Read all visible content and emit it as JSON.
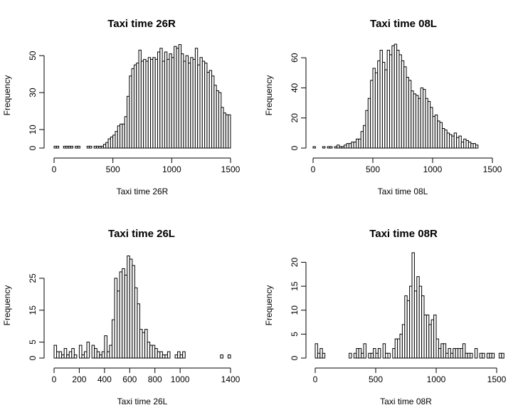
{
  "chart_data": [
    {
      "type": "bar",
      "title": "Taxi time 26R",
      "xlabel": "Taxi time 26R",
      "ylabel": "Frequency",
      "xlim": [
        0,
        1500
      ],
      "ylim": [
        0,
        57
      ],
      "bin_width": 20,
      "bin_start": 0,
      "xticks": [
        0,
        500,
        1000,
        1500
      ],
      "xtick_labels": [
        "0",
        "500",
        "1000",
        "1500"
      ],
      "yticks": [
        0,
        10,
        30,
        50
      ],
      "ytick_labels": [
        "0",
        "10",
        "30",
        "50"
      ],
      "values": [
        1,
        1,
        0,
        0,
        1,
        1,
        1,
        1,
        0,
        1,
        1,
        0,
        0,
        0,
        1,
        1,
        0,
        1,
        1,
        1,
        1,
        2,
        3,
        5,
        6,
        7,
        9,
        12,
        13,
        13,
        17,
        28,
        39,
        43,
        45,
        46,
        53,
        47,
        48,
        47,
        49,
        48,
        49,
        48,
        52,
        54,
        47,
        52,
        48,
        51,
        49,
        55,
        54,
        56,
        51,
        47,
        50,
        46,
        49,
        48,
        54,
        45,
        49,
        47,
        46,
        41,
        42,
        39,
        34,
        31,
        30,
        22,
        19,
        18,
        18
      ],
      "grid": false,
      "legend": "none"
    },
    {
      "type": "bar",
      "title": "Taxi time 08L",
      "xlabel": "Taxi time 08L",
      "ylabel": "Frequency",
      "xlim": [
        0,
        1500
      ],
      "ylim": [
        0,
        70
      ],
      "bin_width": 20,
      "bin_start": 0,
      "xticks": [
        0,
        500,
        1000,
        1500
      ],
      "xtick_labels": [
        "0",
        "500",
        "1000",
        "1500"
      ],
      "yticks": [
        0,
        20,
        40,
        60
      ],
      "ytick_labels": [
        "0",
        "20",
        "40",
        "60"
      ],
      "values": [
        1,
        0,
        0,
        0,
        1,
        0,
        1,
        1,
        0,
        1,
        2,
        1,
        1,
        2,
        3,
        3,
        4,
        4,
        6,
        6,
        11,
        15,
        25,
        33,
        45,
        53,
        50,
        58,
        65,
        57,
        52,
        65,
        62,
        68,
        69,
        65,
        62,
        58,
        54,
        47,
        45,
        38,
        36,
        35,
        33,
        40,
        39,
        33,
        31,
        27,
        21,
        22,
        18,
        17,
        13,
        12,
        10,
        9,
        8,
        10,
        7,
        8,
        4,
        6,
        5,
        4,
        3,
        3,
        2
      ],
      "grid": false,
      "legend": "none"
    },
    {
      "type": "bar",
      "title": "Taxi time 26L",
      "xlabel": "Taxi time 26L",
      "ylabel": "Frequency",
      "xlim": [
        0,
        1400
      ],
      "ylim": [
        0,
        33
      ],
      "bin_width": 20,
      "bin_start": 0,
      "xticks": [
        0,
        200,
        400,
        600,
        800,
        1000,
        1400
      ],
      "xtick_labels": [
        "0",
        "200",
        "400",
        "600",
        "800",
        "1000",
        "1400"
      ],
      "yticks": [
        0,
        5,
        15,
        25
      ],
      "ytick_labels": [
        "0",
        "5",
        "15",
        "25"
      ],
      "values": [
        4,
        2,
        2,
        1,
        3,
        1,
        2,
        3,
        1,
        0,
        4,
        1,
        2,
        5,
        0,
        4,
        3,
        2,
        1,
        2,
        7,
        2,
        4,
        12,
        25,
        21,
        27,
        28,
        26,
        32,
        31,
        29,
        22,
        17,
        9,
        8,
        9,
        5,
        4,
        4,
        3,
        2,
        2,
        1,
        1,
        2,
        0,
        0,
        1,
        2,
        1,
        2,
        0,
        0,
        0,
        0,
        0,
        0,
        0,
        0,
        0,
        0,
        0,
        0,
        0,
        0,
        1,
        0,
        0,
        1
      ],
      "grid": false,
      "legend": "none"
    },
    {
      "type": "bar",
      "title": "Taxi time 08R",
      "xlabel": "Taxi time 08R",
      "ylabel": "Frequency",
      "xlim": [
        0,
        1500
      ],
      "ylim": [
        0,
        22
      ],
      "bin_width": 20,
      "bin_start": 0,
      "xticks": [
        0,
        500,
        1000,
        1500
      ],
      "xtick_labels": [
        "0",
        "500",
        "1000",
        "1500"
      ],
      "yticks": [
        0,
        5,
        10,
        15,
        20
      ],
      "ytick_labels": [
        "0",
        "5",
        "10",
        "15",
        "20"
      ],
      "values": [
        3,
        1,
        2,
        1,
        0,
        0,
        0,
        0,
        0,
        0,
        0,
        0,
        0,
        0,
        1,
        0,
        1,
        2,
        2,
        1,
        3,
        0,
        1,
        1,
        2,
        1,
        2,
        0,
        3,
        1,
        1,
        0,
        2,
        4,
        4,
        5,
        7,
        13,
        12,
        15,
        22,
        14,
        17,
        15,
        13,
        9,
        9,
        7,
        8,
        9,
        4,
        2,
        3,
        3,
        1,
        2,
        1,
        2,
        2,
        2,
        2,
        3,
        1,
        1,
        1,
        0,
        2,
        0,
        1,
        1,
        0,
        1,
        1,
        1,
        0,
        0,
        1,
        1
      ],
      "grid": false,
      "legend": "none"
    }
  ]
}
